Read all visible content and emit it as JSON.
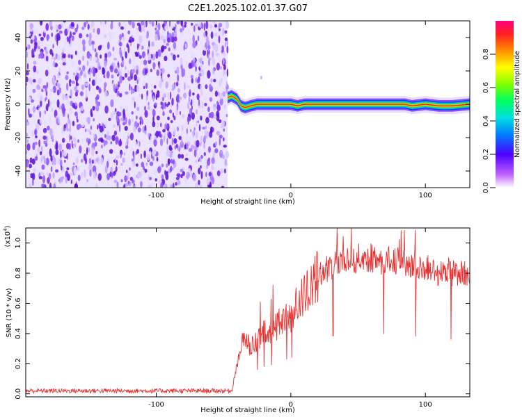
{
  "title": "C2E1.2025.102.01.37.G07",
  "chart_data": [
    {
      "type": "heatmap",
      "xlabel": "Height of straight line (km)",
      "ylabel": "Frequency (Hz)",
      "xlim": [
        -197,
        133
      ],
      "ylim": [
        -50,
        50
      ],
      "x_ticks": [
        -100,
        0,
        100
      ],
      "y_ticks": [
        -40,
        -20,
        0,
        20,
        40
      ],
      "noise_region_x": [
        -197,
        -47
      ],
      "signal_region_x": [
        -47,
        133
      ],
      "signal_track": {
        "x": [
          -47,
          -44,
          -40,
          -37,
          -34,
          -30,
          -25,
          -20,
          -10,
          0,
          5,
          10,
          20,
          40,
          60,
          80,
          85,
          90,
          100,
          110,
          120,
          133
        ],
        "freq": [
          4,
          5,
          3,
          -1,
          -2,
          -1,
          0,
          0,
          0,
          0,
          -1,
          0,
          0,
          0,
          0,
          0,
          0,
          -1,
          0,
          -1,
          -1,
          0
        ]
      },
      "colorbar": {
        "label": "Normalized spectral amplitude",
        "range": [
          0,
          1
        ],
        "ticks": [
          "0.0",
          "0.2",
          "0.4",
          "0.6",
          "0.8"
        ]
      }
    },
    {
      "type": "line",
      "xlabel": "Height of straight line (km)",
      "ylabel": "SNR (10 * v/v)",
      "scale_label": "(x10",
      "scale_exponent": "4",
      "scale_close": ")",
      "xlim": [
        -197,
        133
      ],
      "ylim": [
        -0.02,
        1.1
      ],
      "x_ticks": [
        -100,
        0,
        100
      ],
      "y_ticks": [
        0.0,
        0.2,
        0.4,
        0.6,
        0.8,
        1.0
      ],
      "y_tick_labels": [
        "0.0",
        "0.2",
        "0.4",
        "0.6",
        "0.8",
        "1.0"
      ],
      "series": [
        {
          "color": "#e83030",
          "envelope_x": [
            -197,
            -44,
            -40,
            -35,
            -30,
            -25,
            -20,
            -15,
            -10,
            -5,
            0,
            5,
            10,
            15,
            20,
            25,
            30,
            40,
            50,
            60,
            70,
            80,
            90,
            100,
            110,
            120,
            133
          ],
          "envelope_y": [
            0.02,
            0.02,
            0.18,
            0.38,
            0.3,
            0.35,
            0.4,
            0.42,
            0.45,
            0.5,
            0.52,
            0.6,
            0.65,
            0.72,
            0.78,
            0.82,
            0.85,
            0.88,
            0.9,
            0.9,
            0.88,
            0.88,
            0.85,
            0.83,
            0.8,
            0.8,
            0.8
          ]
        }
      ]
    }
  ]
}
